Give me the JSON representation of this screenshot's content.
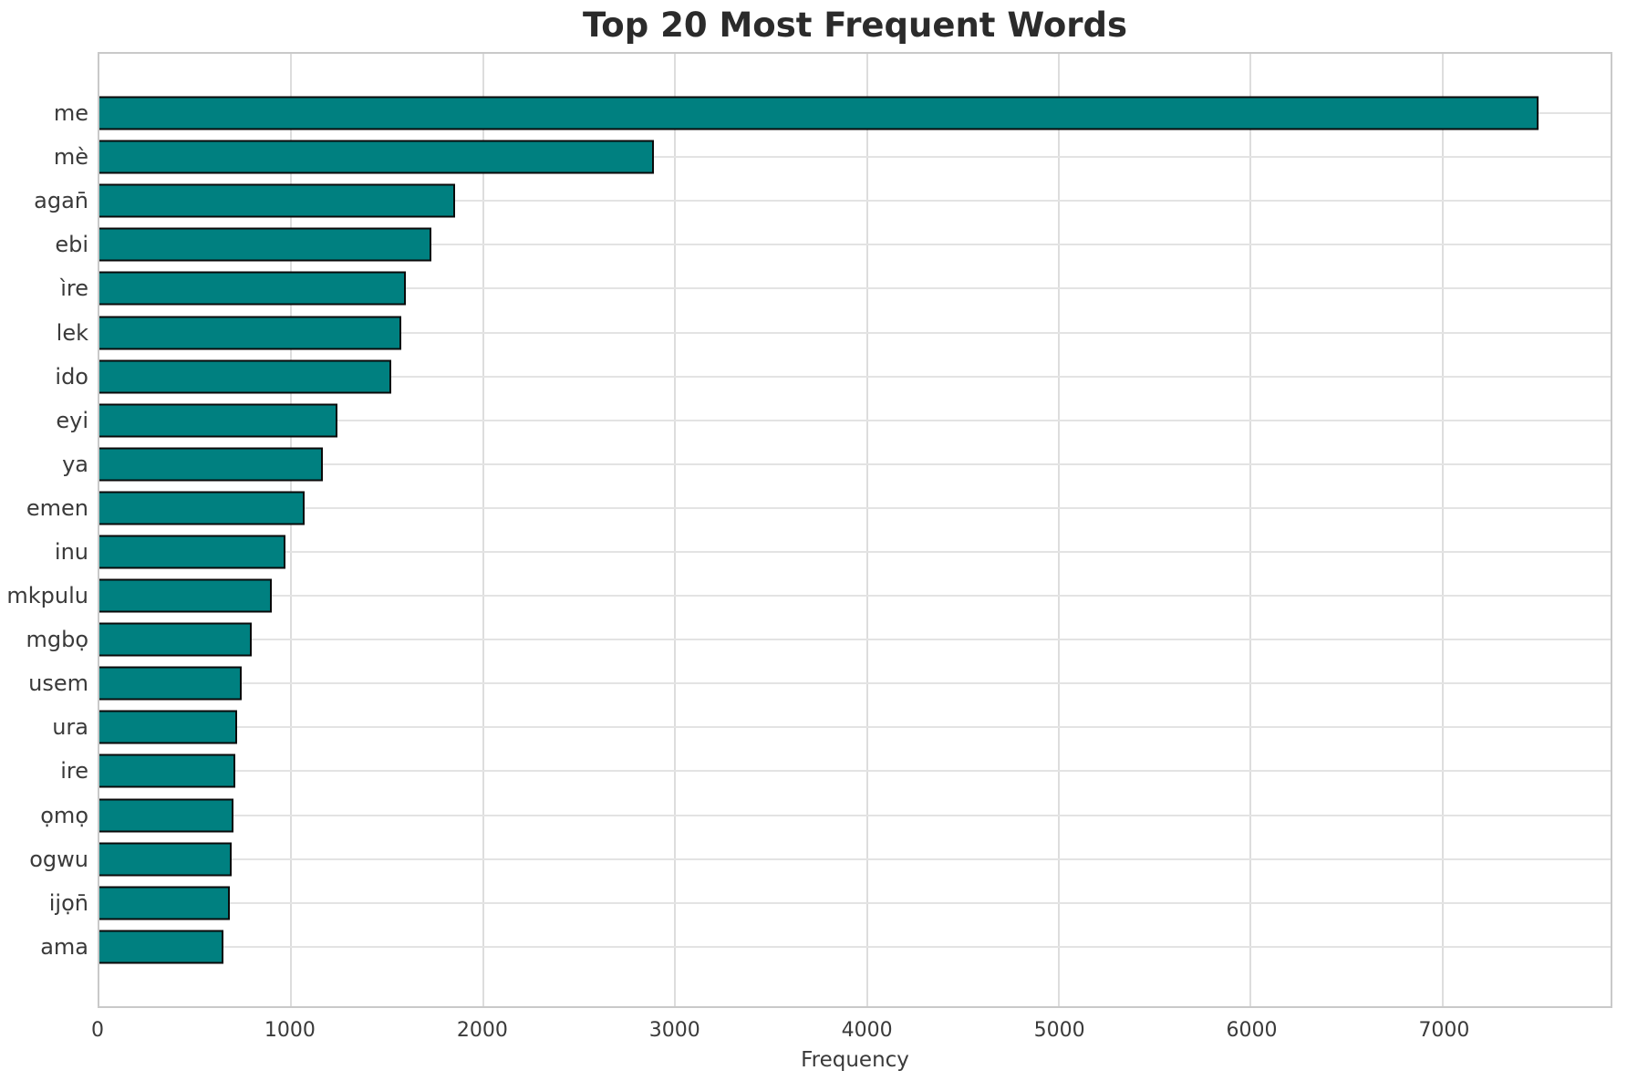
{
  "title": "Top 20 Most Frequent Words",
  "chart_data": {
    "type": "bar",
    "orientation": "horizontal",
    "title": "Top 20 Most Frequent Words",
    "xlabel": "Frequency",
    "ylabel": "",
    "categories": [
      "me",
      "mè",
      "agan̄",
      "ebi",
      "ìre",
      "lek",
      "ido",
      "eyi",
      "ya",
      "emen",
      "inu",
      "mkpulu",
      "mgbọ",
      "usem",
      "ura",
      "ire",
      "ọmọ",
      "ogwu",
      "ijọn̄",
      "ama"
    ],
    "values": [
      7500,
      2890,
      1855,
      1730,
      1595,
      1575,
      1520,
      1240,
      1165,
      1070,
      970,
      900,
      795,
      740,
      720,
      708,
      698,
      690,
      680,
      645
    ],
    "xlim": [
      0,
      7875
    ],
    "x_ticks": [
      0,
      1000,
      2000,
      3000,
      4000,
      5000,
      6000,
      7000
    ],
    "grid": "both",
    "legend": "none",
    "colors": {
      "bar_fill": "#008080",
      "bar_edge": "#0a0a0a",
      "gridline": "#dddddd",
      "spine": "#c9c9c9",
      "text": "#3a3a3a",
      "title_text": "#2b2b2b",
      "background": "#ffffff"
    }
  }
}
